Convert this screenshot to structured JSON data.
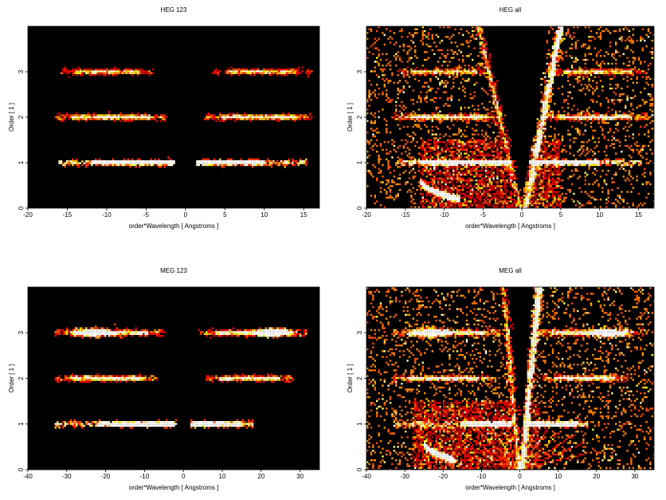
{
  "chart_data": [
    {
      "type": "heatmap",
      "title": "HEG 123",
      "xlabel": "order*Wavelength [ Angstroms ]",
      "ylabel": "Order [ 1 ]",
      "xlim": [
        -20,
        17
      ],
      "ylim": [
        0,
        4
      ],
      "xticks": [
        -20,
        -15,
        -10,
        -5,
        0,
        5,
        10,
        15
      ],
      "yticks": [
        0,
        1,
        2,
        3
      ],
      "background": "#000000",
      "colormap": "hot",
      "features": [
        {
          "kind": "band",
          "order": 1,
          "x_range": [
            -16,
            -1.5
          ],
          "core_range": [
            -12,
            -1.5
          ],
          "intensity": "high"
        },
        {
          "kind": "band",
          "order": 1,
          "x_range": [
            1.5,
            15.5
          ],
          "core_range": [
            1.5,
            10
          ],
          "intensity": "high"
        },
        {
          "kind": "band",
          "order": 2,
          "x_range": [
            -16.5,
            -2.5
          ],
          "intensity": "medium"
        },
        {
          "kind": "band",
          "order": 2,
          "x_range": [
            2.5,
            16
          ],
          "intensity": "medium"
        },
        {
          "kind": "band",
          "order": 3,
          "x_range": [
            -16,
            -4
          ],
          "intensity": "low"
        },
        {
          "kind": "band",
          "order": 3,
          "x_range": [
            3.5,
            16
          ],
          "intensity": "low"
        }
      ]
    },
    {
      "type": "heatmap",
      "title": "HEG all",
      "xlabel": "order*Wavelength [ Angstroms ]",
      "ylabel": "Order [ 1 ]",
      "xlim": [
        -20,
        17
      ],
      "ylim": [
        0,
        4
      ],
      "xticks": [
        -20,
        -15,
        -10,
        -5,
        0,
        5,
        10,
        15
      ],
      "yticks": [
        0,
        1,
        2,
        3
      ],
      "background": "#000000",
      "colormap": "hot",
      "features": [
        {
          "kind": "band",
          "order": 1,
          "x_range": [
            -16,
            -1.5
          ],
          "core_range": [
            -13,
            -1.5
          ],
          "intensity": "high"
        },
        {
          "kind": "band",
          "order": 1,
          "x_range": [
            1.5,
            15.5
          ],
          "core_range": [
            1,
            10
          ],
          "intensity": "high"
        },
        {
          "kind": "band",
          "order": 2,
          "x_range": [
            -16.5,
            -2.5
          ],
          "intensity": "medium"
        },
        {
          "kind": "band",
          "order": 2,
          "x_range": [
            2.5,
            16
          ],
          "intensity": "medium"
        },
        {
          "kind": "band",
          "order": 3,
          "x_range": [
            -16,
            -4
          ],
          "intensity": "low"
        },
        {
          "kind": "band",
          "order": 3,
          "x_range": [
            3.5,
            16
          ],
          "intensity": "low"
        },
        {
          "kind": "background_noise",
          "density": "high"
        },
        {
          "kind": "wedge_streak",
          "from": [
            0,
            0
          ],
          "to": [
            -5.5,
            4
          ],
          "intensity": "medium"
        },
        {
          "kind": "wedge_streak",
          "from": [
            0.5,
            0
          ],
          "to": [
            5,
            4
          ],
          "intensity": "high"
        },
        {
          "kind": "wedge_gap",
          "from": [
            0,
            0
          ],
          "left_top": -5.5,
          "right_top": 3.5
        },
        {
          "kind": "diffuse_patch",
          "x_range": [
            -13,
            5
          ],
          "y_range": [
            0,
            1.5
          ],
          "intensity": "low"
        },
        {
          "kind": "curved_streak",
          "x_range": [
            -13,
            -8
          ],
          "y_range": [
            0.2,
            0.6
          ],
          "intensity": "high"
        }
      ]
    },
    {
      "type": "heatmap",
      "title": "MEG 123",
      "xlabel": "order*Wavelength [ Angstroms ]",
      "ylabel": "Order [ 1 ]",
      "xlim": [
        -40,
        35
      ],
      "ylim": [
        0,
        4
      ],
      "xticks": [
        -40,
        -30,
        -20,
        -10,
        0,
        10,
        20,
        30
      ],
      "yticks": [
        0,
        1,
        2,
        3
      ],
      "background": "#000000",
      "colormap": "hot",
      "features": [
        {
          "kind": "band",
          "order": 1,
          "x_range": [
            -33,
            -2
          ],
          "core_range": [
            -22,
            -2
          ],
          "intensity": "high"
        },
        {
          "kind": "band",
          "order": 1,
          "x_range": [
            2,
            18
          ],
          "core_range": [
            2,
            15
          ],
          "intensity": "high"
        },
        {
          "kind": "band",
          "order": 2,
          "x_range": [
            -33,
            -7
          ],
          "intensity": "medium"
        },
        {
          "kind": "band",
          "order": 2,
          "x_range": [
            6,
            28
          ],
          "intensity": "medium"
        },
        {
          "kind": "band",
          "order": 3,
          "x_range": [
            -33,
            -5
          ],
          "intensity": "medium",
          "hotspot": -23
        },
        {
          "kind": "band",
          "order": 3,
          "x_range": [
            4,
            32
          ],
          "intensity": "medium",
          "hotspot": 23
        }
      ]
    },
    {
      "type": "heatmap",
      "title": "MEG all",
      "xlabel": "order*Wavelength [ Angstroms ]",
      "ylabel": "Order [ 1 ]",
      "xlim": [
        -40,
        35
      ],
      "ylim": [
        0,
        4
      ],
      "xticks": [
        -40,
        -30,
        -20,
        -10,
        0,
        10,
        20,
        30
      ],
      "yticks": [
        0,
        1,
        2,
        3
      ],
      "background": "#000000",
      "colormap": "hot",
      "features": [
        {
          "kind": "band",
          "order": 1,
          "x_range": [
            -33,
            -2
          ],
          "core_range": [
            -15,
            -2
          ],
          "intensity": "high"
        },
        {
          "kind": "band",
          "order": 1,
          "x_range": [
            2,
            18
          ],
          "core_range": [
            2,
            15
          ],
          "intensity": "high"
        },
        {
          "kind": "band",
          "order": 2,
          "x_range": [
            -33,
            -7
          ],
          "intensity": "medium"
        },
        {
          "kind": "band",
          "order": 2,
          "x_range": [
            6,
            28
          ],
          "intensity": "medium"
        },
        {
          "kind": "band",
          "order": 3,
          "x_range": [
            -33,
            -5
          ],
          "intensity": "medium",
          "hotspot": -23
        },
        {
          "kind": "band",
          "order": 3,
          "x_range": [
            4,
            32
          ],
          "intensity": "medium",
          "hotspot": 23
        },
        {
          "kind": "background_noise",
          "density": "high"
        },
        {
          "kind": "wedge_streak",
          "from": [
            0,
            0
          ],
          "to": [
            -4,
            4
          ],
          "intensity": "medium"
        },
        {
          "kind": "wedge_streak",
          "from": [
            0.5,
            0
          ],
          "to": [
            5,
            4
          ],
          "intensity": "high"
        },
        {
          "kind": "wedge_gap",
          "from": [
            0,
            0
          ],
          "left_top": -4,
          "right_top": 3.5
        },
        {
          "kind": "diffuse_patch",
          "x_range": [
            -28,
            5
          ],
          "y_range": [
            0,
            1.5
          ],
          "intensity": "low"
        },
        {
          "kind": "curved_streak",
          "x_range": [
            -25,
            -17
          ],
          "y_range": [
            0.2,
            0.6
          ],
          "intensity": "high"
        },
        {
          "kind": "fan_rays",
          "origin": [
            0,
            0
          ],
          "intensity": "medium"
        }
      ]
    }
  ]
}
